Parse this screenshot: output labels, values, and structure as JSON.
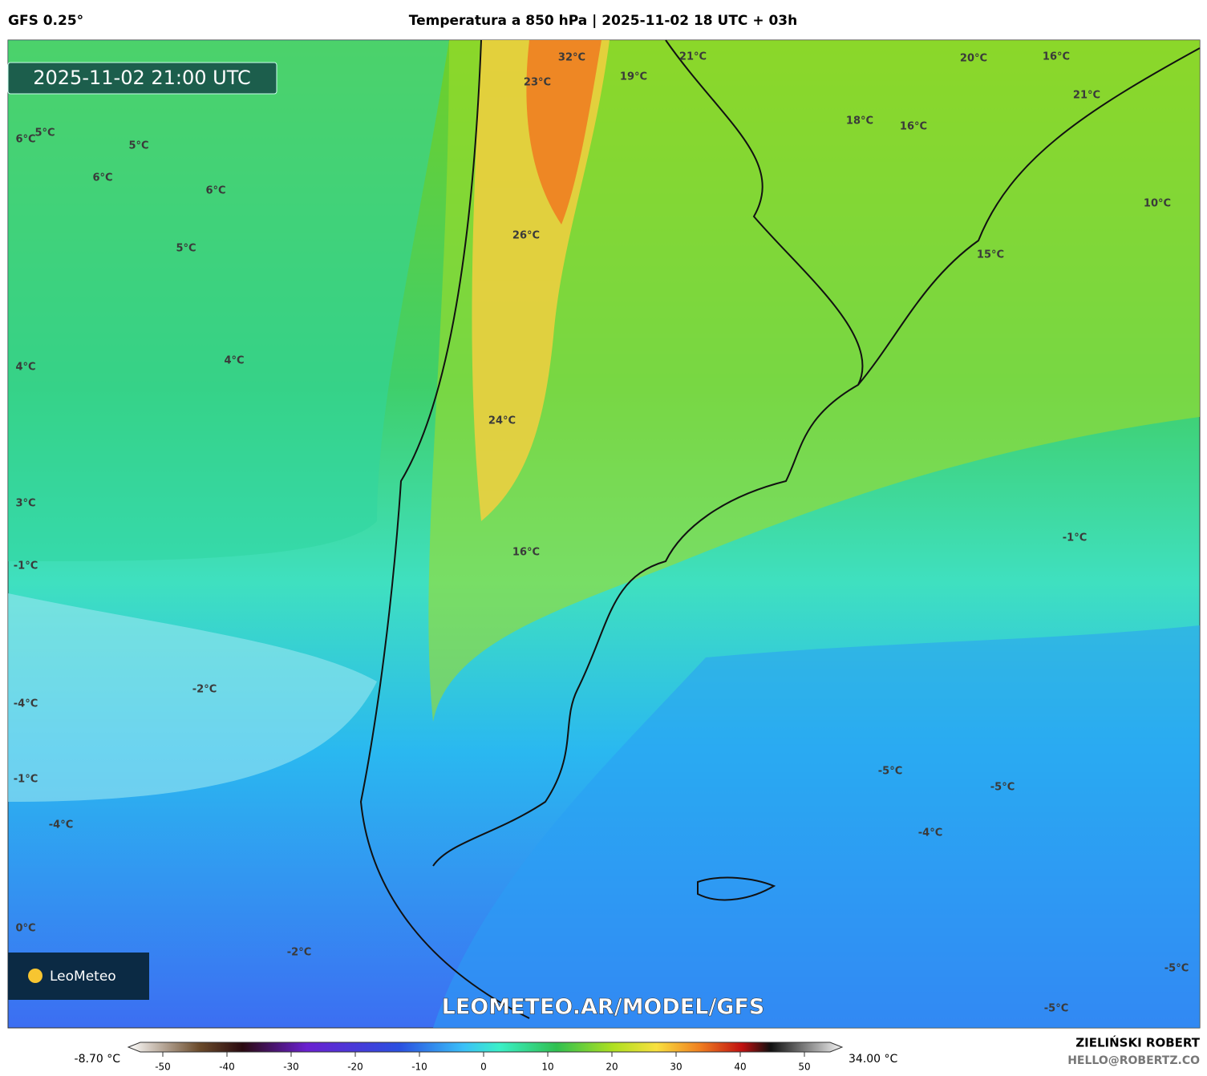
{
  "header": {
    "model": "GFS 0.25°",
    "title": "Temperatura a 850 hPa | 2025-11-02 18 UTC + 03h"
  },
  "map": {
    "timestamp": "2025-11-02 21:00 UTC",
    "labels": [
      "32°C",
      "23°C",
      "19°C",
      "21°C",
      "20°C",
      "16°C",
      "21°C",
      "18°C",
      "16°C",
      "10°C",
      "15°C",
      "26°C",
      "24°C",
      "16°C",
      "6°C",
      "5°C",
      "5°C",
      "6°C",
      "6°C",
      "5°C",
      "4°C",
      "4°C",
      "3°C",
      "-1°C",
      "-1°C",
      "-2°C",
      "-4°C",
      "-1°C",
      "-5°C",
      "-5°C",
      "-4°C",
      "-4°C",
      "0°C",
      "-2°C",
      "-5°C",
      "-5°C"
    ],
    "watermark": "LEOMETEO.AR/MODEL/GFS",
    "logo": "LeoMeteo"
  },
  "colorbar": {
    "min_label": "-8.70 °C",
    "max_label": "34.00 °C",
    "lim": [
      -53.5,
      54
    ],
    "ticks": [
      -50,
      -40,
      -30,
      -20,
      -10,
      0,
      10,
      20,
      30,
      40,
      50
    ]
  },
  "footer": {
    "author": "ZIELIŃSKI ROBERT",
    "email": "HELLO@ROBERTZ.CO"
  }
}
